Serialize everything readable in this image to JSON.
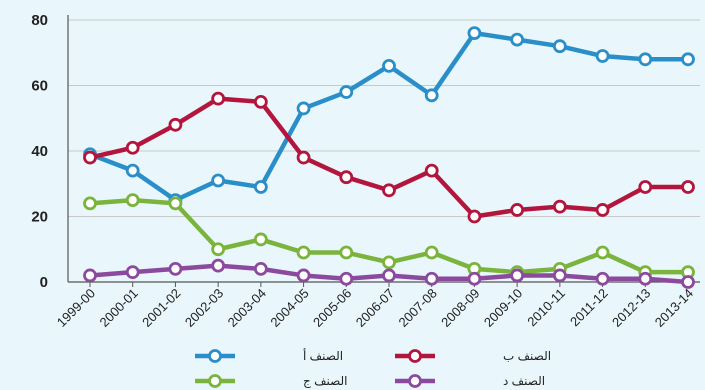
{
  "chart_data": {
    "type": "line",
    "title": "",
    "xlabel": "",
    "ylabel": "",
    "ylim": [
      0,
      80
    ],
    "yticks": [
      "0",
      "20",
      "40",
      "60",
      "80"
    ],
    "grid": "horizontal",
    "legend_position": "bottom",
    "categories": [
      "1999-00",
      "2000-01",
      "2001-02",
      "2002-03",
      "2003-04",
      "2004-05",
      "2005-06",
      "2006-07",
      "2007-08",
      "2008-09",
      "2009-10",
      "2010-11",
      "2011-12",
      "2012-13",
      "2013-14"
    ],
    "series": [
      {
        "name": "الصنف أ",
        "color": "#2a8fc8",
        "values": [
          39,
          34,
          25,
          31,
          29,
          53,
          58,
          66,
          57,
          76,
          74,
          72,
          69,
          68,
          68
        ]
      },
      {
        "name": "الصنف ب",
        "color": "#b3163d",
        "values": [
          38,
          41,
          48,
          56,
          55,
          38,
          32,
          28,
          34,
          20,
          22,
          23,
          22,
          29,
          29
        ]
      },
      {
        "name": "الصنف ج",
        "color": "#7ab43c",
        "values": [
          24,
          25,
          24,
          10,
          13,
          9,
          9,
          6,
          9,
          4,
          3,
          4,
          9,
          3,
          3
        ]
      },
      {
        "name": "الصنف د",
        "color": "#8b4a9e",
        "values": [
          2,
          3,
          4,
          5,
          4,
          2,
          1,
          2,
          1,
          1,
          2,
          2,
          1,
          1,
          0
        ]
      }
    ]
  }
}
